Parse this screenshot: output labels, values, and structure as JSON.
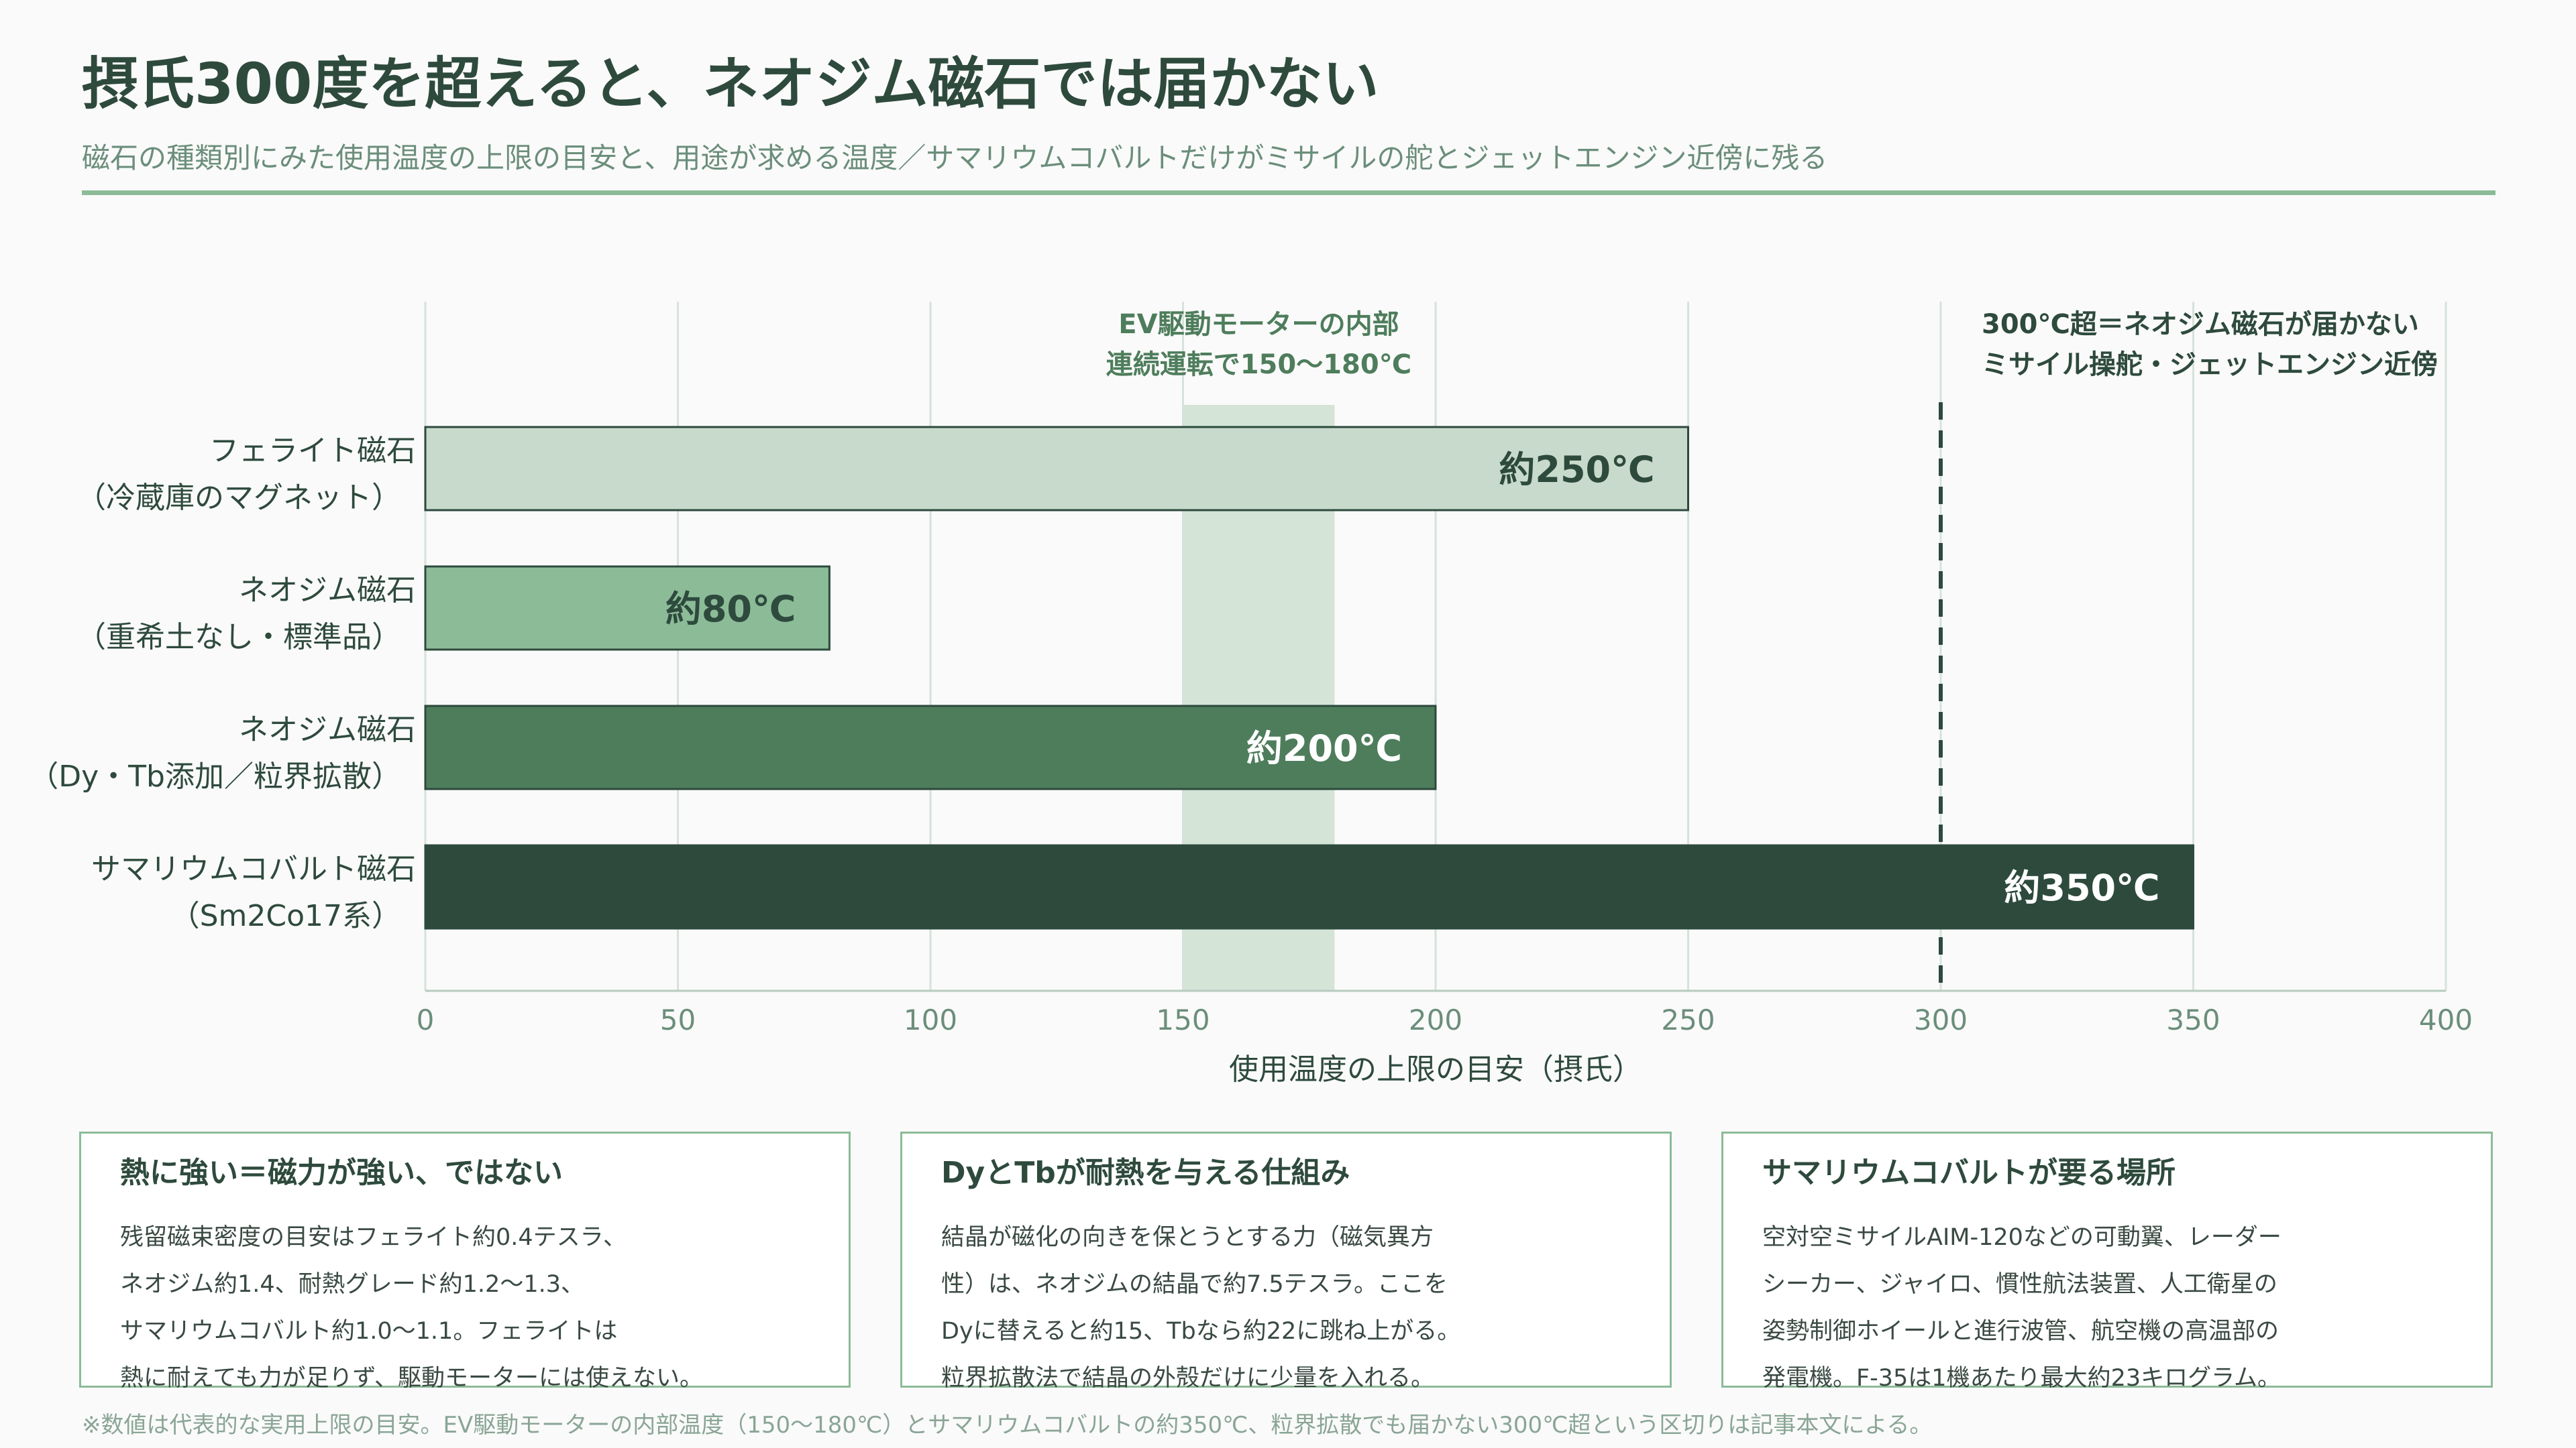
{
  "header": {
    "title": "摂氏300度を超えると、ネオジム磁石では届かない",
    "subtitle": "磁石の種類別にみた使用温度の上限の目安と、用途が求める温度／サマリウムコバルトだけがミサイルの舵とジェットエンジン近傍に残る"
  },
  "chart_data": {
    "type": "bar",
    "orientation": "horizontal",
    "xlabel": "使用温度の上限の目安（摂氏）",
    "xlim": [
      0,
      400
    ],
    "xticks": [
      0,
      50,
      100,
      150,
      200,
      250,
      300,
      350,
      400
    ],
    "grid": true,
    "categories": [
      [
        "フェライト磁石",
        "（冷蔵庫のマグネット）"
      ],
      [
        "ネオジム磁石",
        "（重希土なし・標準品）"
      ],
      [
        "ネオジム磁石",
        "（Dy・Tb添加／粒界拡散）"
      ],
      [
        "サマリウムコバルト磁石",
        "（Sm2Co17系）"
      ]
    ],
    "values": [
      250,
      80,
      200,
      350
    ],
    "data_labels": [
      "約250℃",
      "約80℃",
      "約200℃",
      "約350℃"
    ],
    "bar_colors": [
      "#c8dacb",
      "#8cbb98",
      "#4e7d5c",
      "#2d4a3d"
    ],
    "label_colors": [
      "#2e4a3d",
      "#2e4a3d",
      "#ffffff",
      "#ffffff"
    ],
    "band": {
      "from": 150,
      "to": 180,
      "color": "#d4e5d8",
      "label": [
        "EV駆動モーターの内部",
        "連続運転で150〜180℃"
      ]
    },
    "reference_line": {
      "x": 300,
      "style": "dashed",
      "label": [
        "300℃超＝ネオジム磁石が届かない",
        "ミサイル操舵・ジェットエンジン近傍"
      ]
    }
  },
  "cards": [
    {
      "title": "熱に強い＝磁力が強い、ではない",
      "lines": [
        "残留磁束密度の目安はフェライト約0.4テスラ、",
        "ネオジム約1.4、耐熱グレード約1.2〜1.3、",
        "サマリウムコバルト約1.0〜1.1。フェライトは",
        "熱に耐えても力が足りず、駆動モーターには使えない。"
      ]
    },
    {
      "title": "DyとTbが耐熱を与える仕組み",
      "lines": [
        "結晶が磁化の向きを保とうとする力（磁気異方",
        "性）は、ネオジムの結晶で約7.5テスラ。ここを",
        "Dyに替えると約15、Tbなら約22に跳ね上がる。",
        "粒界拡散法で結晶の外殻だけに少量を入れる。"
      ]
    },
    {
      "title": "サマリウムコバルトが要る場所",
      "lines": [
        "空対空ミサイルAIM-120などの可動翼、レーダー",
        "シーカー、ジャイロ、慣性航法装置、人工衛星の",
        "姿勢制御ホイールと進行波管、航空機の高温部の",
        "発電機。F-35は1機あたり最大約23キログラム。"
      ]
    }
  ],
  "footnote": "※数値は代表的な実用上限の目安。EV駆動モーターの内部温度（150〜180℃）とサマリウムコバルトの約350℃、粒界拡散でも届かない300℃超という区切りは記事本文による。"
}
